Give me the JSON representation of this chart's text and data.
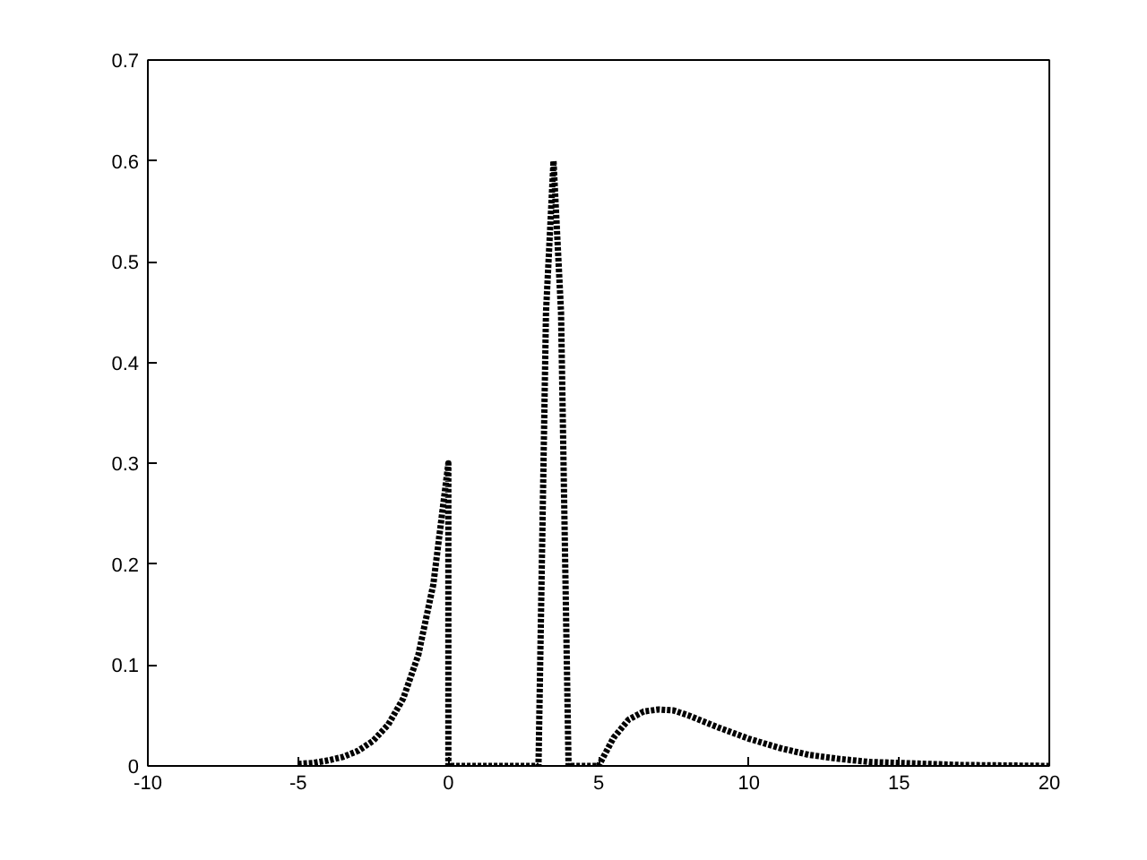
{
  "chart_data": {
    "type": "line",
    "x": [
      -5,
      -4.5,
      -4,
      -3.5,
      -3,
      -2.5,
      -2,
      -1.5,
      -1,
      -0.5,
      0,
      0,
      3,
      3.25,
      3.5,
      3.75,
      4,
      5,
      5.5,
      6,
      6.5,
      7,
      7.5,
      8,
      9,
      10,
      11,
      12,
      13,
      14,
      15,
      17,
      20
    ],
    "series": [
      {
        "color": "#000000",
        "values": [
          0.002,
          0.003,
          0.0055,
          0.009,
          0.015,
          0.025,
          0.041,
          0.067,
          0.11,
          0.18,
          0.3,
          0,
          0,
          0.45,
          0.6,
          0.45,
          0,
          0,
          0.028,
          0.046,
          0.054,
          0.056,
          0.055,
          0.05,
          0.038,
          0.027,
          0.018,
          0.011,
          0.007,
          0.004,
          0.003,
          0.001,
          0
        ]
      }
    ],
    "xlim": [
      -10,
      20
    ],
    "xticks": [
      -10,
      -5,
      0,
      5,
      10,
      15,
      20
    ],
    "ylim": [
      0,
      0.7
    ],
    "yticks": [
      0,
      0.1,
      0.2,
      0.3,
      0.4,
      0.5,
      0.6,
      0.7
    ],
    "grid": false,
    "line_style": "dotted",
    "marker": "none"
  }
}
